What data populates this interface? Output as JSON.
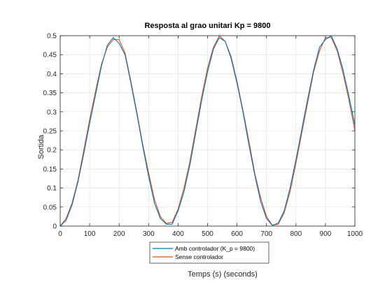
{
  "chart_data": {
    "type": "line",
    "title": "Resposta al grao unitari Kp = 9800",
    "xlabel": "Temps (s) (seconds)",
    "ylabel": "Sortida",
    "xlim": [
      0,
      1000
    ],
    "ylim": [
      0,
      0.5
    ],
    "xticks": [
      0,
      100,
      200,
      300,
      400,
      500,
      600,
      700,
      800,
      900,
      1000
    ],
    "yticks": [
      0,
      0.05,
      0.1,
      0.15,
      0.2,
      0.25,
      0.3,
      0.35,
      0.4,
      0.45,
      0.5
    ],
    "grid": true,
    "legend_position": "bottom-center-outside",
    "series": [
      {
        "name": "Amb controlador (K_p = 9800)",
        "color": "#0072BD",
        "x": [
          0,
          20,
          40,
          60,
          80,
          100,
          120,
          140,
          160,
          180,
          200,
          220,
          240,
          260,
          280,
          300,
          320,
          340,
          360,
          380,
          400,
          420,
          440,
          460,
          480,
          500,
          520,
          540,
          560,
          580,
          600,
          620,
          640,
          660,
          680,
          700,
          720,
          740,
          760,
          780,
          800,
          820,
          840,
          860,
          880,
          900,
          920,
          940,
          960,
          980,
          1000
        ],
        "y": [
          0,
          0.015,
          0.055,
          0.115,
          0.19,
          0.27,
          0.345,
          0.42,
          0.475,
          0.495,
          0.48,
          0.45,
          0.375,
          0.295,
          0.21,
          0.13,
          0.06,
          0.02,
          0.005,
          0.005,
          0.04,
          0.09,
          0.16,
          0.245,
          0.33,
          0.405,
          0.465,
          0.495,
          0.485,
          0.44,
          0.375,
          0.3,
          0.215,
          0.135,
          0.065,
          0.02,
          0.002,
          0.008,
          0.04,
          0.1,
          0.175,
          0.255,
          0.335,
          0.41,
          0.47,
          0.49,
          0.5,
          0.465,
          0.41,
          0.34,
          0.265
        ]
      },
      {
        "name": "Sense controlador",
        "color": "#D95319",
        "x": [
          0,
          20,
          40,
          60,
          80,
          100,
          120,
          140,
          160,
          180,
          200,
          220,
          240,
          260,
          280,
          300,
          320,
          340,
          360,
          380,
          400,
          420,
          440,
          460,
          480,
          500,
          520,
          540,
          560,
          580,
          600,
          620,
          640,
          660,
          680,
          700,
          720,
          740,
          760,
          780,
          800,
          820,
          840,
          860,
          880,
          900,
          920,
          940,
          960,
          980,
          1000
        ],
        "y": [
          0,
          0.02,
          0.06,
          0.12,
          0.2,
          0.28,
          0.355,
          0.425,
          0.47,
          0.49,
          0.49,
          0.455,
          0.38,
          0.3,
          0.215,
          0.14,
          0.07,
          0.025,
          0.007,
          0.01,
          0.045,
          0.1,
          0.17,
          0.255,
          0.34,
          0.415,
          0.47,
          0.5,
          0.485,
          0.445,
          0.38,
          0.305,
          0.225,
          0.14,
          0.075,
          0.025,
          0.002,
          0.005,
          0.035,
          0.09,
          0.165,
          0.245,
          0.325,
          0.405,
          0.46,
          0.495,
          0.495,
          0.46,
          0.4,
          0.33,
          0.25
        ]
      }
    ]
  }
}
